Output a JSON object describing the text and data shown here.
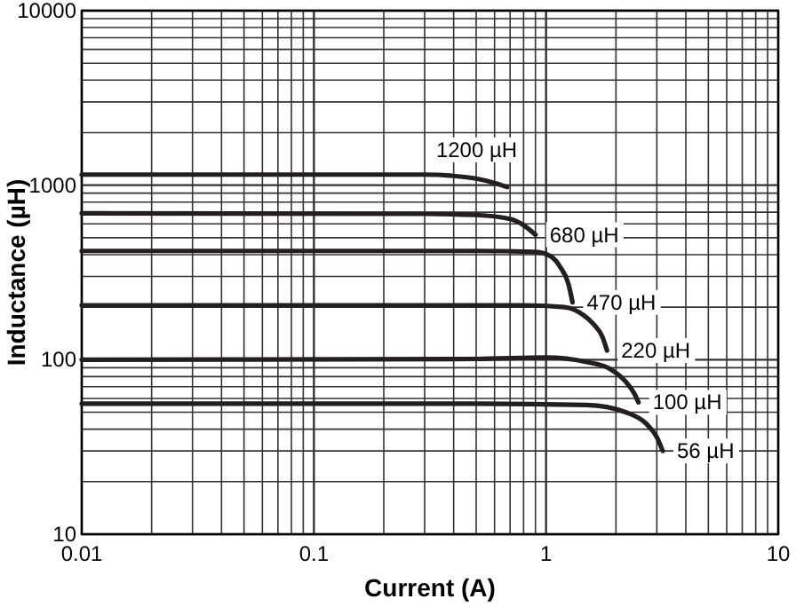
{
  "chart_data": {
    "type": "line",
    "xlabel": "Current (A)",
    "ylabel": "Inductance (µH)",
    "log": "xy",
    "grid": true,
    "marker": "none",
    "line_style": "solid",
    "xlim": [
      0.01,
      10
    ],
    "ylim": [
      10,
      10000
    ],
    "xticks": [
      0.01,
      {
        "value": 0.02,
        "label": null
      },
      {
        "value": 0.03,
        "label": null
      },
      {
        "value": 0.04,
        "label": null
      },
      {
        "value": 0.05,
        "label": null
      },
      {
        "value": 0.06,
        "label": null
      },
      {
        "value": 0.07,
        "label": null
      },
      {
        "value": 0.08,
        "label": null
      },
      {
        "value": 0.09,
        "label": null
      },
      0.1,
      {
        "value": 0.2,
        "label": null
      },
      {
        "value": 0.3,
        "label": null
      },
      {
        "value": 0.4,
        "label": null
      },
      {
        "value": 0.5,
        "label": null
      },
      {
        "value": 0.6,
        "label": null
      },
      {
        "value": 0.7,
        "label": null
      },
      {
        "value": 0.8,
        "label": null
      },
      {
        "value": 0.9,
        "label": null
      },
      1,
      {
        "value": 2,
        "label": null
      },
      {
        "value": 3,
        "label": null
      },
      {
        "value": 4,
        "label": null
      },
      {
        "value": 5,
        "label": null
      },
      {
        "value": 6,
        "label": null
      },
      {
        "value": 7,
        "label": null
      },
      {
        "value": 8,
        "label": null
      },
      {
        "value": 9,
        "label": null
      },
      10
    ],
    "yticks": [
      10,
      {
        "value": 20,
        "label": null
      },
      {
        "value": 30,
        "label": null
      },
      {
        "value": 40,
        "label": null
      },
      {
        "value": 50,
        "label": null
      },
      {
        "value": 60,
        "label": null
      },
      {
        "value": 70,
        "label": null
      },
      {
        "value": 80,
        "label": null
      },
      {
        "value": 90,
        "label": null
      },
      100,
      {
        "value": 200,
        "label": null
      },
      {
        "value": 300,
        "label": null
      },
      {
        "value": 400,
        "label": null
      },
      {
        "value": 500,
        "label": null
      },
      {
        "value": 600,
        "label": null
      },
      {
        "value": 700,
        "label": null
      },
      {
        "value": 800,
        "label": null
      },
      {
        "value": 900,
        "label": null
      },
      1000,
      {
        "value": 2000,
        "label": null
      },
      {
        "value": 3000,
        "label": null
      },
      {
        "value": 4000,
        "label": null
      },
      {
        "value": 5000,
        "label": null
      },
      {
        "value": 6000,
        "label": null
      },
      {
        "value": 7000,
        "label": null
      },
      {
        "value": 8000,
        "label": null
      },
      {
        "value": 9000,
        "label": null
      },
      10000
    ],
    "series": [
      {
        "name": "1200 µH",
        "color": "#231f20",
        "x": [
          0.01,
          0.1,
          0.3,
          0.4,
          0.5,
          0.6,
          0.68
        ],
        "values": [
          1150,
          1150,
          1150,
          1130,
          1090,
          1030,
          975
        ]
      },
      {
        "name": "680 µH",
        "color": "#231f20",
        "x": [
          0.01,
          0.3,
          0.5,
          0.7,
          0.8,
          0.9
        ],
        "values": [
          690,
          685,
          675,
          640,
          590,
          520
        ]
      },
      {
        "name": "470 µH",
        "color": "#231f20",
        "x": [
          0.01,
          0.5,
          0.9,
          1.05,
          1.15,
          1.25,
          1.3
        ],
        "values": [
          420,
          420,
          415,
          390,
          340,
          270,
          213
        ]
      },
      {
        "name": "220 µH",
        "color": "#231f20",
        "x": [
          0.01,
          0.8,
          1.2,
          1.45,
          1.6,
          1.75,
          1.83
        ],
        "values": [
          205,
          205,
          200,
          180,
          160,
          135,
          113
        ]
      },
      {
        "name": "100 µH",
        "color": "#231f20",
        "x": [
          0.01,
          0.5,
          1.0,
          1.5,
          1.9,
          2.2,
          2.4,
          2.5
        ],
        "values": [
          100,
          101,
          103,
          97,
          88,
          75,
          64,
          57
        ]
      },
      {
        "name": "56 µH",
        "color": "#231f20",
        "x": [
          0.01,
          0.5,
          1.5,
          2.2,
          2.7,
          3.0,
          3.18
        ],
        "values": [
          56,
          56,
          55,
          50,
          43,
          36,
          30
        ]
      }
    ]
  }
}
